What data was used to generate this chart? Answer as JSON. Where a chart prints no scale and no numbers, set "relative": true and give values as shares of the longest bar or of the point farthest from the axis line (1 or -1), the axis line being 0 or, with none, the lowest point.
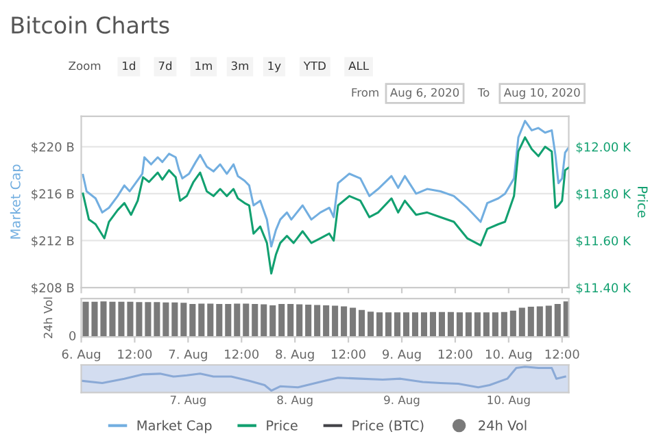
{
  "chart_data": [
    {
      "type": "line",
      "title": "Bitcoin Charts",
      "annotations": [
        "Zoom",
        "1d",
        "7d",
        "1m",
        "3m",
        "1y",
        "YTD",
        "ALL",
        "From",
        "Aug 6, 2020",
        "To",
        "Aug 10, 2020"
      ],
      "ylabel": "Market Cap",
      "y2label": "Price",
      "xlim": [
        "2020-08-06T00:00",
        "2020-08-10T13:30"
      ],
      "xticks": [
        {
          "value": "2020-08-06T00:00",
          "label": null
        },
        {
          "value": "2020-08-06T12:00",
          "label": null
        },
        {
          "value": "2020-08-07T00:00",
          "label": null
        },
        {
          "value": "2020-08-07T12:00",
          "label": null
        },
        {
          "value": "2020-08-08T00:00",
          "label": null
        },
        {
          "value": "2020-08-08T12:00",
          "label": null
        },
        {
          "value": "2020-08-09T00:00",
          "label": null
        },
        {
          "value": "2020-08-09T12:00",
          "label": null
        },
        {
          "value": "2020-08-10T00:00",
          "label": null
        },
        {
          "value": "2020-08-10T12:00",
          "label": null
        }
      ],
      "ylim": [
        208,
        222.6
      ],
      "yticks": [
        {
          "value": 208,
          "label": "$208 B"
        },
        {
          "value": 212,
          "label": "$212 B"
        },
        {
          "value": 216,
          "label": "$216 B"
        },
        {
          "value": 220,
          "label": "$220 B"
        }
      ],
      "y2lim": [
        11.4,
        12.13
      ],
      "y2ticks": [
        {
          "value": 11.4,
          "label": "$11.40 K"
        },
        {
          "value": 11.6,
          "label": "$11.60 K"
        },
        {
          "value": 11.8,
          "label": "$11.80 K"
        },
        {
          "value": 12.0,
          "label": "$12.00 K"
        }
      ],
      "grid": "y",
      "legend": "bottom",
      "tick_labels": "y",
      "series": [
        {
          "name": "Market Cap",
          "color": "#72aee0",
          "x": [
            "2020-08-06T00:23",
            "2020-08-06T01:12",
            "2020-08-06T03:13",
            "2020-08-06T04:43",
            "2020-08-06T06:13",
            "2020-08-06T08:11",
            "2020-08-06T09:41",
            "2020-08-06T10:53",
            "2020-08-06T12:13",
            "2020-08-06T13:43",
            "2020-08-06T14:11",
            "2020-08-06T15:41",
            "2020-08-06T17:11",
            "2020-08-06T18:13",
            "2020-08-06T19:43",
            "2020-08-06T21:13",
            "2020-08-06T21:54",
            "2020-08-06T22:43",
            "2020-08-07T00:13",
            "2020-08-07T01:43",
            "2020-08-07T02:42",
            "2020-08-07T04:12",
            "2020-08-07T05:42",
            "2020-08-07T07:12",
            "2020-08-07T08:42",
            "2020-08-07T10:12",
            "2020-08-07T11:11",
            "2020-08-07T12:41",
            "2020-08-07T13:43",
            "2020-08-07T14:42",
            "2020-08-07T16:12",
            "2020-08-07T17:42",
            "2020-08-07T18:41",
            "2020-08-07T19:43",
            "2020-08-07T20:42",
            "2020-08-07T22:12",
            "2020-08-07T23:11",
            "2020-08-08T01:43",
            "2020-08-08T03:41",
            "2020-08-08T05:42",
            "2020-08-08T07:43",
            "2020-08-08T08:42",
            "2020-08-08T09:41",
            "2020-08-08T12:13",
            "2020-08-08T14:42",
            "2020-08-08T16:43",
            "2020-08-08T18:41",
            "2020-08-08T21:41",
            "2020-08-08T23:11",
            "2020-08-09T00:41",
            "2020-08-09T03:13",
            "2020-08-09T05:42",
            "2020-08-09T08:42",
            "2020-08-09T11:42",
            "2020-08-09T14:42",
            "2020-08-09T17:42",
            "2020-08-09T19:12",
            "2020-08-09T21:41",
            "2020-08-09T23:11",
            "2020-08-10T01:12",
            "2020-08-10T02:11",
            "2020-08-10T03:41",
            "2020-08-10T05:11",
            "2020-08-10T06:41",
            "2020-08-10T08:11",
            "2020-08-10T09:41",
            "2020-08-10T10:30",
            "2020-08-10T11:11",
            "2020-08-10T12:00",
            "2020-08-10T12:41",
            "2020-08-10T13:25"
          ],
          "values": [
            217.6,
            216.2,
            215.6,
            214.4,
            214.8,
            215.8,
            216.7,
            216.2,
            216.9,
            217.7,
            219.1,
            218.5,
            219.1,
            218.7,
            219.4,
            219.1,
            218.1,
            217.3,
            217.7,
            218.7,
            219.3,
            218.3,
            217.9,
            218.5,
            217.7,
            218.5,
            217.5,
            217.1,
            216.7,
            215.0,
            215.4,
            213.8,
            211.5,
            212.9,
            213.8,
            214.4,
            213.8,
            215.0,
            213.8,
            214.4,
            214.8,
            214.0,
            216.9,
            217.7,
            217.3,
            215.8,
            216.4,
            217.5,
            216.5,
            217.5,
            216.0,
            216.4,
            216.2,
            215.8,
            214.8,
            213.6,
            215.2,
            215.6,
            216.0,
            217.3,
            220.8,
            222.2,
            221.4,
            221.6,
            221.2,
            221.4,
            219.3,
            216.9,
            217.3,
            219.5,
            219.9
          ]
        },
        {
          "name": "Price",
          "color": "#12a070",
          "axis": "y2",
          "x": [
            "2020-08-06T00:23",
            "2020-08-06T01:43",
            "2020-08-06T03:13",
            "2020-08-06T05:11",
            "2020-08-06T06:13",
            "2020-08-06T08:11",
            "2020-08-06T09:41",
            "2020-08-06T11:11",
            "2020-08-06T12:41",
            "2020-08-06T13:53",
            "2020-08-06T15:13",
            "2020-08-06T17:11",
            "2020-08-06T18:13",
            "2020-08-06T19:43",
            "2020-08-06T21:13",
            "2020-08-06T22:12",
            "2020-08-06T23:42",
            "2020-08-07T01:12",
            "2020-08-07T02:42",
            "2020-08-07T04:12",
            "2020-08-07T05:42",
            "2020-08-07T07:12",
            "2020-08-07T08:42",
            "2020-08-07T10:12",
            "2020-08-07T11:11",
            "2020-08-07T12:41",
            "2020-08-07T13:43",
            "2020-08-07T14:42",
            "2020-08-07T16:12",
            "2020-08-07T17:42",
            "2020-08-07T18:41",
            "2020-08-07T19:43",
            "2020-08-07T20:42",
            "2020-08-07T22:12",
            "2020-08-07T23:42",
            "2020-08-08T01:43",
            "2020-08-08T03:41",
            "2020-08-08T05:42",
            "2020-08-08T07:43",
            "2020-08-08T08:42",
            "2020-08-08T09:41",
            "2020-08-08T12:13",
            "2020-08-08T14:42",
            "2020-08-08T16:43",
            "2020-08-08T18:41",
            "2020-08-08T21:41",
            "2020-08-08T23:11",
            "2020-08-09T00:41",
            "2020-08-09T03:13",
            "2020-08-09T05:42",
            "2020-08-09T08:42",
            "2020-08-09T11:42",
            "2020-08-09T14:42",
            "2020-08-09T17:42",
            "2020-08-09T19:12",
            "2020-08-09T21:41",
            "2020-08-09T23:11",
            "2020-08-10T01:12",
            "2020-08-10T02:11",
            "2020-08-10T03:41",
            "2020-08-10T05:11",
            "2020-08-10T06:41",
            "2020-08-10T08:11",
            "2020-08-10T09:41",
            "2020-08-10T10:30",
            "2020-08-10T11:11",
            "2020-08-10T12:00",
            "2020-08-10T12:41",
            "2020-08-10T13:25"
          ],
          "values": [
            11.8,
            11.69,
            11.67,
            11.61,
            11.68,
            11.73,
            11.76,
            11.71,
            11.77,
            11.87,
            11.85,
            11.89,
            11.86,
            11.9,
            11.87,
            11.77,
            11.79,
            11.85,
            11.89,
            11.81,
            11.79,
            11.82,
            11.79,
            11.82,
            11.78,
            11.76,
            11.75,
            11.63,
            11.66,
            11.59,
            11.46,
            11.54,
            11.59,
            11.62,
            11.59,
            11.64,
            11.59,
            11.61,
            11.63,
            11.6,
            11.75,
            11.79,
            11.77,
            11.7,
            11.72,
            11.78,
            11.72,
            11.77,
            11.71,
            11.72,
            11.7,
            11.68,
            11.61,
            11.58,
            11.65,
            11.67,
            11.68,
            11.79,
            11.98,
            12.04,
            11.99,
            11.96,
            12.0,
            11.98,
            11.74,
            11.75,
            11.77,
            11.9,
            11.91
          ]
        },
        {
          "name": "Price (BTC)",
          "color": "#434348"
        }
      ]
    },
    {
      "type": "bar",
      "relative": true,
      "ylabel": "24h Vol",
      "annotations": [
        "0"
      ],
      "legend": "bottom",
      "xlim": [
        "2020-08-06T00:00",
        "2020-08-10T13:30"
      ],
      "xticks": [
        {
          "value": "2020-08-06T00:00",
          "label": "6. Aug"
        },
        {
          "value": "2020-08-06T12:00",
          "label": "12:00"
        },
        {
          "value": "2020-08-07T00:00",
          "label": "7. Aug"
        },
        {
          "value": "2020-08-07T12:00",
          "label": "12:00"
        },
        {
          "value": "2020-08-08T00:00",
          "label": "8. Aug"
        },
        {
          "value": "2020-08-08T12:00",
          "label": "12:00"
        },
        {
          "value": "2020-08-09T00:00",
          "label": "9. Aug"
        },
        {
          "value": "2020-08-09T12:00",
          "label": "12:00"
        },
        {
          "value": "2020-08-10T00:00",
          "label": "10. Aug"
        },
        {
          "value": "2020-08-10T12:00",
          "label": "12:00"
        }
      ],
      "x": [
        "2020-08-06T01:00",
        "2020-08-06T03:00",
        "2020-08-06T05:00",
        "2020-08-06T07:00",
        "2020-08-06T09:00",
        "2020-08-06T11:00",
        "2020-08-06T13:00",
        "2020-08-06T15:00",
        "2020-08-06T17:00",
        "2020-08-06T19:00",
        "2020-08-06T21:00",
        "2020-08-06T23:00",
        "2020-08-07T01:00",
        "2020-08-07T03:00",
        "2020-08-07T05:00",
        "2020-08-07T07:00",
        "2020-08-07T09:00",
        "2020-08-07T11:00",
        "2020-08-07T13:00",
        "2020-08-07T15:00",
        "2020-08-07T17:00",
        "2020-08-07T19:00",
        "2020-08-07T21:00",
        "2020-08-07T23:00",
        "2020-08-08T01:00",
        "2020-08-08T03:00",
        "2020-08-08T05:00",
        "2020-08-08T07:00",
        "2020-08-08T09:00",
        "2020-08-08T11:00",
        "2020-08-08T13:00",
        "2020-08-08T15:00",
        "2020-08-08T17:00",
        "2020-08-08T19:00",
        "2020-08-08T21:00",
        "2020-08-08T23:00",
        "2020-08-09T01:00",
        "2020-08-09T03:00",
        "2020-08-09T05:00",
        "2020-08-09T07:00",
        "2020-08-09T09:00",
        "2020-08-09T11:00",
        "2020-08-09T13:00",
        "2020-08-09T15:00",
        "2020-08-09T17:00",
        "2020-08-09T19:00",
        "2020-08-09T21:00",
        "2020-08-09T23:00",
        "2020-08-10T01:00",
        "2020-08-10T03:00",
        "2020-08-10T05:00",
        "2020-08-10T07:00",
        "2020-08-10T09:00",
        "2020-08-10T11:00",
        "2020-08-10T13:00"
      ],
      "series": [
        {
          "name": "24h Vol",
          "color": "#7a7a7a",
          "values": [
            0.99,
            0.99,
            1.0,
            0.99,
            0.99,
            0.99,
            0.98,
            0.98,
            0.98,
            0.97,
            0.97,
            0.96,
            0.93,
            0.94,
            0.94,
            0.93,
            0.93,
            0.94,
            0.94,
            0.93,
            0.92,
            0.89,
            0.93,
            0.93,
            0.92,
            0.91,
            0.9,
            0.89,
            0.88,
            0.86,
            0.82,
            0.76,
            0.71,
            0.69,
            0.69,
            0.69,
            0.69,
            0.69,
            0.69,
            0.7,
            0.7,
            0.7,
            0.69,
            0.69,
            0.69,
            0.69,
            0.69,
            0.7,
            0.74,
            0.82,
            0.85,
            0.86,
            0.88,
            0.93,
            1.0
          ]
        }
      ]
    },
    {
      "type": "line",
      "relative": true,
      "tick_labels": "x",
      "xlim": [
        "2020-08-06T00:00",
        "2020-08-10T13:30"
      ],
      "xticks": [
        {
          "value": "2020-08-07T00:00",
          "label": "7. Aug"
        },
        {
          "value": "2020-08-08T00:00",
          "label": "8. Aug"
        },
        {
          "value": "2020-08-09T00:00",
          "label": "9. Aug"
        },
        {
          "value": "2020-08-10T00:00",
          "label": "10. Aug"
        }
      ],
      "bands": [
        {
          "axis": "x",
          "from": "2020-08-06T00:00",
          "to": "2020-08-10T13:30",
          "color": "#d3ddf0"
        }
      ],
      "series": [
        {
          "color": "#8aa9d6",
          "x": [
            "2020-08-06T00:12",
            "2020-08-06T04:43",
            "2020-08-06T09:41",
            "2020-08-06T13:43",
            "2020-08-06T17:42",
            "2020-08-06T20:42",
            "2020-08-06T23:42",
            "2020-08-07T02:42",
            "2020-08-07T05:42",
            "2020-08-07T09:41",
            "2020-08-07T13:43",
            "2020-08-07T17:11",
            "2020-08-07T18:41",
            "2020-08-07T20:42",
            "2020-08-08T00:41",
            "2020-08-08T06:41",
            "2020-08-08T09:41",
            "2020-08-08T14:42",
            "2020-08-08T19:43",
            "2020-08-08T23:42",
            "2020-08-09T04:43",
            "2020-08-09T08:42",
            "2020-08-09T12:41",
            "2020-08-09T17:11",
            "2020-08-09T19:43",
            "2020-08-09T23:42",
            "2020-08-10T01:43",
            "2020-08-10T03:41",
            "2020-08-10T06:41",
            "2020-08-10T09:41",
            "2020-08-10T10:43",
            "2020-08-10T12:41"
          ],
          "values": [
            0.41,
            0.32,
            0.5,
            0.68,
            0.71,
            0.59,
            0.64,
            0.71,
            0.59,
            0.59,
            0.41,
            0.23,
            0,
            0.18,
            0.14,
            0.41,
            0.54,
            0.5,
            0.46,
            0.5,
            0.36,
            0.32,
            0.29,
            0.14,
            0.23,
            0.5,
            0.95,
            1,
            0.95,
            0.95,
            0.5,
            0.59
          ]
        }
      ]
    }
  ]
}
